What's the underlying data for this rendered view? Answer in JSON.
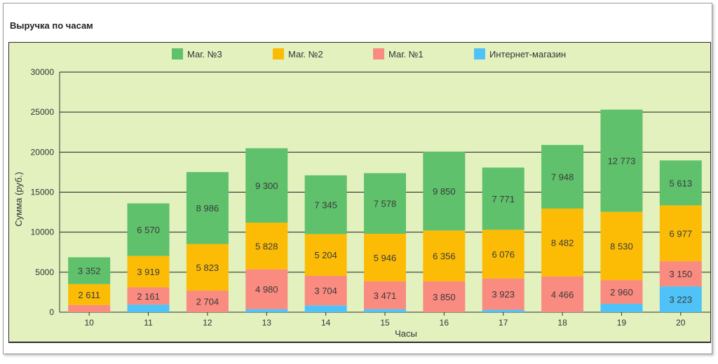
{
  "panel": {
    "title": "Выручка по часам"
  },
  "chart_data": {
    "type": "bar",
    "stacked": true,
    "title": "Выручка по часам",
    "xlabel": "Часы",
    "ylabel": "Сумма (руб.)",
    "ylim": [
      0,
      30000
    ],
    "yticks": [
      0,
      5000,
      10000,
      15000,
      20000,
      25000,
      30000
    ],
    "grid": true,
    "legend_position": "top",
    "categories": [
      "10",
      "11",
      "12",
      "13",
      "14",
      "15",
      "16",
      "17",
      "18",
      "19",
      "20"
    ],
    "background_color": "#e3f1bf",
    "series": [
      {
        "name": "Интернет-магазин",
        "color": "#4fc3f7",
        "values": [
          0,
          950,
          0,
          380,
          850,
          380,
          0,
          300,
          0,
          1050,
          3223
        ],
        "labels": [
          "",
          "",
          "",
          "",
          "",
          "",
          "",
          "",
          "",
          "",
          "3 223"
        ]
      },
      {
        "name": "Маг. №1",
        "color": "#f98b80",
        "values": [
          900,
          2161,
          2704,
          4980,
          3704,
          3471,
          3850,
          3923,
          4466,
          2960,
          3150
        ],
        "labels": [
          "",
          "2 161",
          "2 704",
          "4 980",
          "3 704",
          "3 471",
          "3 850",
          "3 923",
          "4 466",
          "2 960",
          "3 150"
        ]
      },
      {
        "name": "Маг. №2",
        "color": "#fcbc06",
        "values": [
          2611,
          3919,
          5823,
          5828,
          5204,
          5946,
          6356,
          6076,
          8482,
          8530,
          6977
        ],
        "labels": [
          "2 611",
          "3 919",
          "5 823",
          "5 828",
          "5 204",
          "5 946",
          "6 356",
          "6 076",
          "8 482",
          "8 530",
          "6 977"
        ]
      },
      {
        "name": "Маг. №3",
        "color": "#5fc16c",
        "values": [
          3352,
          6570,
          8986,
          9300,
          7345,
          7578,
          9850,
          7771,
          7948,
          12773,
          5613
        ],
        "labels": [
          "3 352",
          "6 570",
          "8 986",
          "9 300",
          "7 345",
          "7 578",
          "9 850",
          "7 771",
          "7 948",
          "12 773",
          "5 613"
        ]
      }
    ],
    "legend": [
      "Маг. №3",
      "Маг. №2",
      "Маг. №1",
      "Интернет-магазин"
    ]
  }
}
